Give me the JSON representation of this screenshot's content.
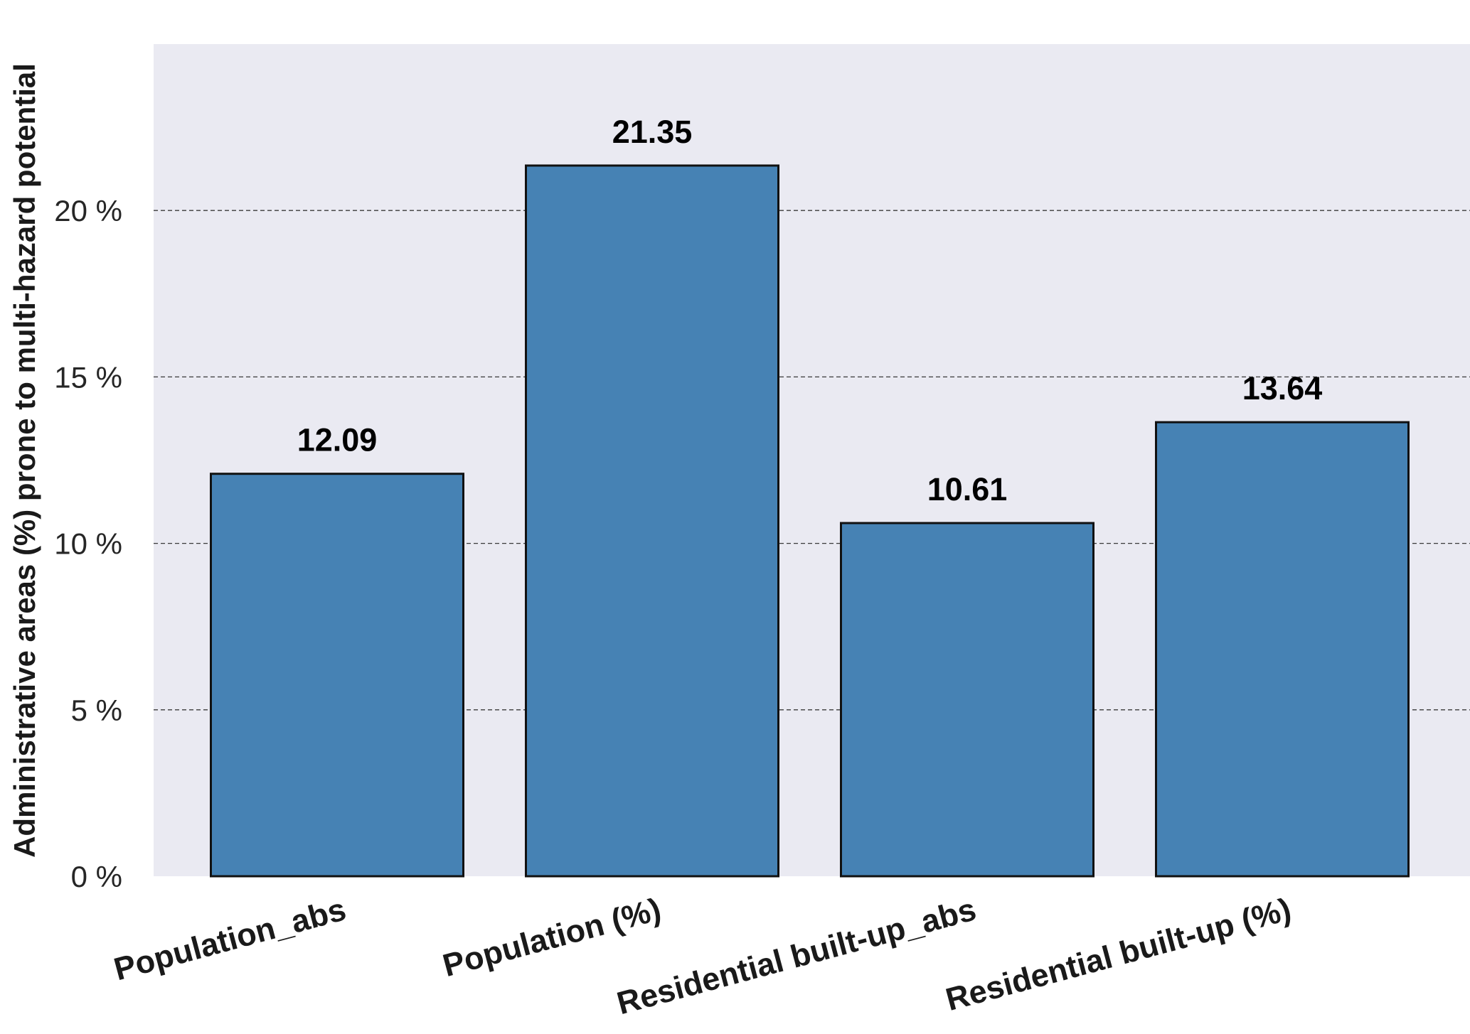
{
  "chart_data": {
    "type": "bar",
    "title": "",
    "xlabel": "",
    "ylabel": "Administrative areas (%) prone to multi-hazard potential",
    "categories": [
      "Population_abs",
      "Population (%)",
      "Residential built-up_abs",
      "Residential built-up (%)"
    ],
    "values": [
      12.09,
      21.35,
      10.61,
      13.64
    ],
    "data_labels": [
      "12.09",
      "21.35",
      "10.61",
      "13.64"
    ],
    "ylim": [
      0,
      25
    ],
    "yticks": [
      0,
      5,
      10,
      15,
      20
    ],
    "ytick_labels": [
      "0 %",
      "5 %",
      "10 %",
      "15 %",
      "20 %"
    ],
    "grid": "y-dashed",
    "legend": "none",
    "colors": {
      "bar": "#4682b4",
      "plot_background": "#eaeaf2",
      "grid": "#3a3a3a"
    }
  }
}
